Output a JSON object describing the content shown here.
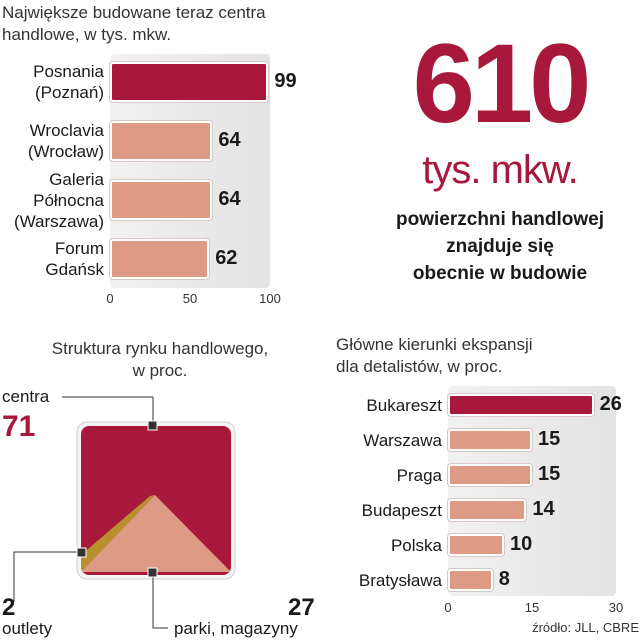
{
  "chart_data": [
    {
      "type": "bar",
      "title": "Największe budowane teraz centra\nhandlowe, w tys. mkw.",
      "categories": [
        "Posnania\n(Poznań)",
        "Wroclavia\n(Wrocław)",
        "Galeria\nPółnocna\n(Warszawa)",
        "Forum\nGdańsk"
      ],
      "values": [
        99,
        64,
        64,
        62
      ],
      "xlim": [
        0,
        100
      ],
      "xticks": [
        "0",
        "50",
        "100"
      ],
      "orientation": "horizontal",
      "highlight_index": 0
    },
    {
      "type": "pie",
      "title": "Struktura rynku handlowego,\nw proc.",
      "labels": [
        "centra",
        "outlety",
        "parki, magazyny"
      ],
      "values": [
        71,
        2,
        27
      ]
    },
    {
      "type": "bar",
      "title": "Główne kierunki ekspansji\ndla detalistów, w proc.",
      "categories": [
        "Bukareszt",
        "Warszawa",
        "Praga",
        "Budapeszt",
        "Polska",
        "Bratysława"
      ],
      "values": [
        26,
        15,
        15,
        14,
        10,
        8
      ],
      "xlim": [
        0,
        30
      ],
      "xticks": [
        "0",
        "15",
        "30"
      ],
      "orientation": "horizontal",
      "highlight_index": 0
    }
  ],
  "headline": {
    "number": "610",
    "unit": "tys. mkw.",
    "text": "powierzchni handlowej\nznajduje się\nobecnie w budowie"
  },
  "source": "źródło: JLL, CBRE",
  "colors": {
    "highlight": "#a8183a",
    "bar": "#dd9b86",
    "outlet": "#b8902c"
  }
}
